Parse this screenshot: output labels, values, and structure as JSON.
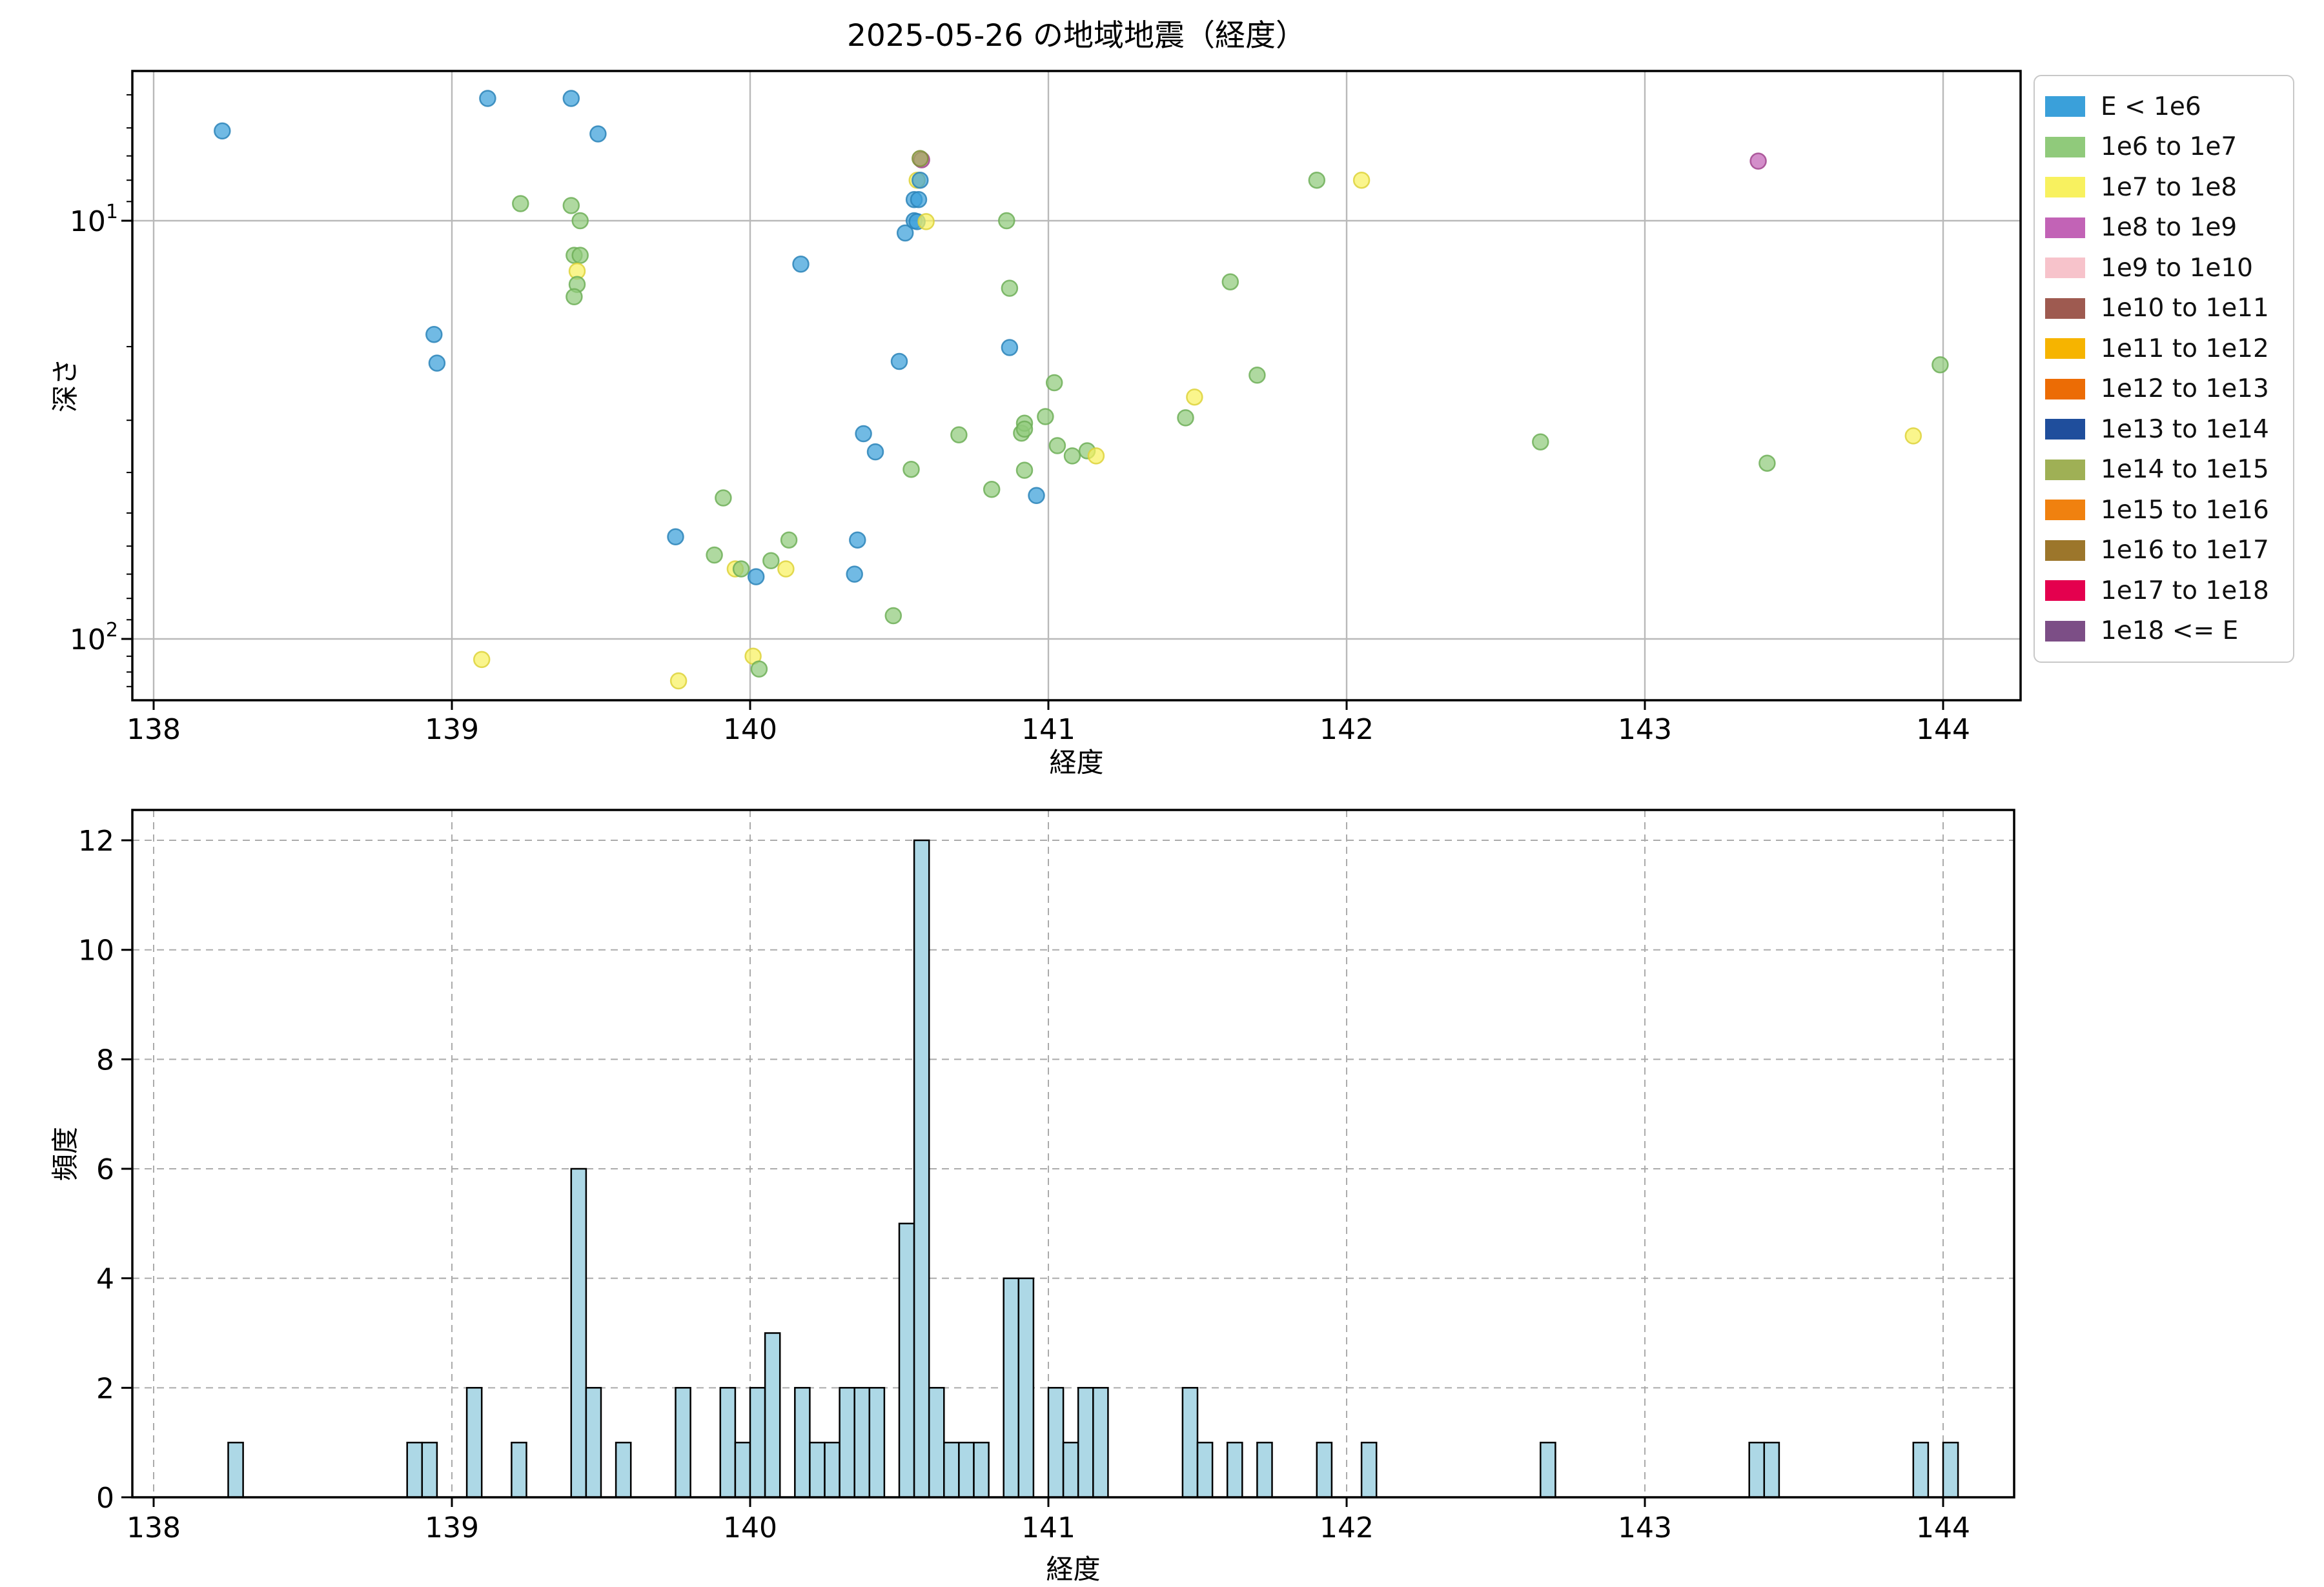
{
  "figure": {
    "background": "#ffffff"
  },
  "legend": {
    "entries": [
      {
        "label": "E < 1e6",
        "color": "#3AA0DA"
      },
      {
        "label": "1e6 to 1e7",
        "color": "#90CA7B"
      },
      {
        "label": "1e7 to 1e8",
        "color": "#F8F15F"
      },
      {
        "label": "1e8 to 1e9",
        "color": "#C263B6"
      },
      {
        "label": "1e9 to 1e10",
        "color": "#F7C3CB"
      },
      {
        "label": "1e10 to 1e11",
        "color": "#9E5A50"
      },
      {
        "label": "1e11 to 1e12",
        "color": "#F6B400"
      },
      {
        "label": "1e12 to 1e13",
        "color": "#EC6C05"
      },
      {
        "label": "1e13 to 1e14",
        "color": "#1F4E9C"
      },
      {
        "label": "1e14 to 1e15",
        "color": "#9FB055"
      },
      {
        "label": "1e15 to 1e16",
        "color": "#F0810F"
      },
      {
        "label": "1e16 to 1e17",
        "color": "#9C762B"
      },
      {
        "label": "1e17 to 1e18",
        "color": "#E4004E"
      },
      {
        "label": "1e18 <= E",
        "color": "#7C4E86"
      }
    ]
  },
  "classes": {
    "b": {
      "label": "E < 1e6",
      "fill": "#3AA0DA",
      "edge": "#2C84B8"
    },
    "g": {
      "label": "1e6 to 1e7",
      "fill": "#90CA7B",
      "edge": "#6FAF58"
    },
    "y": {
      "label": "1e7 to 1e8",
      "fill": "#F8F15F",
      "edge": "#DDD23B"
    },
    "p": {
      "label": "1e8 to 1e9",
      "fill": "#C263B6",
      "edge": "#A2478F"
    },
    "o": {
      "label": "1e14 to 1e15",
      "fill": "#9FB055",
      "edge": "#7F9038"
    }
  },
  "style": {
    "scatter_alpha": 0.72,
    "hist_fill": "#ADD8E6",
    "hist_edge": "#000000",
    "grid_top_color": "#b9b9b9",
    "grid_bottom_color": "#ababab",
    "spine_color": "#000000"
  },
  "chart_data": [
    {
      "type": "scatter",
      "title": "2025-05-26 の地域地震（経度）",
      "xlabel": "経度",
      "ylabel": "深さ",
      "x_range": [
        137.93,
        144.26
      ],
      "y_scale": "log",
      "y_inverted": true,
      "y_range": [
        4.4,
        140
      ],
      "xticks": [
        138,
        139,
        140,
        141,
        142,
        143,
        144
      ],
      "yticks": [
        10,
        100
      ],
      "y_minor_ticks": [
        5,
        6,
        7,
        8,
        9,
        20,
        30,
        40,
        50,
        60,
        70,
        80,
        90,
        110,
        120,
        130
      ],
      "grid": "solid",
      "legend_position": "outside-right",
      "points": [
        [
          138.23,
          6.1,
          "b"
        ],
        [
          138.94,
          18.7,
          "b"
        ],
        [
          138.95,
          21.9,
          "b"
        ],
        [
          139.1,
          112,
          "y"
        ],
        [
          139.12,
          5.1,
          "b"
        ],
        [
          139.23,
          9.1,
          "g"
        ],
        [
          139.4,
          5.1,
          "b"
        ],
        [
          139.4,
          9.2,
          "g"
        ],
        [
          139.43,
          10.0,
          "g"
        ],
        [
          139.41,
          12.1,
          "g"
        ],
        [
          139.43,
          12.1,
          "g"
        ],
        [
          139.42,
          13.2,
          "y"
        ],
        [
          139.42,
          14.2,
          "g"
        ],
        [
          139.41,
          15.2,
          "g"
        ],
        [
          139.49,
          6.2,
          "b"
        ],
        [
          139.75,
          57,
          "b"
        ],
        [
          139.76,
          126,
          "y"
        ],
        [
          139.88,
          63,
          "g"
        ],
        [
          139.91,
          46,
          "g"
        ],
        [
          139.95,
          68,
          "y"
        ],
        [
          139.97,
          68,
          "g"
        ],
        [
          140.01,
          110,
          "y"
        ],
        [
          140.02,
          71,
          "b"
        ],
        [
          140.03,
          118,
          "g"
        ],
        [
          140.07,
          65,
          "g"
        ],
        [
          140.12,
          68,
          "y"
        ],
        [
          140.13,
          58,
          "g"
        ],
        [
          140.17,
          12.7,
          "b"
        ],
        [
          140.35,
          70,
          "b"
        ],
        [
          140.36,
          58,
          "b"
        ],
        [
          140.38,
          32.3,
          "b"
        ],
        [
          140.42,
          35.7,
          "b"
        ],
        [
          140.48,
          88,
          "g"
        ],
        [
          140.5,
          21.7,
          "b"
        ],
        [
          140.52,
          10.7,
          "b"
        ],
        [
          140.54,
          39.3,
          "g"
        ],
        [
          140.575,
          7.15,
          "p"
        ],
        [
          140.57,
          7.1,
          "o"
        ],
        [
          140.56,
          8.0,
          "y"
        ],
        [
          140.57,
          8.0,
          "b"
        ],
        [
          140.55,
          8.9,
          "b"
        ],
        [
          140.565,
          8.9,
          "b"
        ],
        [
          140.55,
          10.0,
          "b"
        ],
        [
          140.56,
          10.05,
          "b"
        ],
        [
          140.59,
          10.05,
          "y"
        ],
        [
          140.7,
          32.5,
          "g"
        ],
        [
          140.81,
          43.9,
          "g"
        ],
        [
          140.86,
          10.0,
          "g"
        ],
        [
          140.87,
          14.5,
          "g"
        ],
        [
          140.87,
          20.1,
          "b"
        ],
        [
          140.91,
          32.2,
          "g"
        ],
        [
          140.92,
          30.5,
          "g"
        ],
        [
          140.92,
          31.5,
          "g"
        ],
        [
          140.92,
          39.5,
          "g"
        ],
        [
          140.96,
          45.4,
          "b"
        ],
        [
          140.99,
          29.4,
          "g"
        ],
        [
          141.02,
          24.4,
          "g"
        ],
        [
          141.03,
          34.5,
          "g"
        ],
        [
          141.08,
          36.5,
          "g"
        ],
        [
          141.13,
          35.5,
          "g"
        ],
        [
          141.16,
          36.5,
          "y"
        ],
        [
          141.46,
          29.6,
          "g"
        ],
        [
          141.49,
          26.4,
          "y"
        ],
        [
          141.61,
          14.0,
          "g"
        ],
        [
          141.7,
          23.4,
          "g"
        ],
        [
          141.9,
          8.0,
          "g"
        ],
        [
          142.05,
          8.0,
          "y"
        ],
        [
          142.65,
          33.8,
          "g"
        ],
        [
          143.38,
          7.2,
          "p"
        ],
        [
          143.41,
          38.0,
          "g"
        ],
        [
          143.9,
          32.7,
          "y"
        ],
        [
          143.99,
          22.1,
          "g"
        ]
      ]
    },
    {
      "type": "bar",
      "xlabel": "経度",
      "ylabel": "頻度",
      "bin_width": 0.05,
      "x_range": [
        137.93,
        144.26
      ],
      "y_range": [
        0,
        12.6
      ],
      "xticks": [
        138,
        139,
        140,
        141,
        142,
        143,
        144
      ],
      "yticks": [
        0,
        2,
        4,
        6,
        8,
        10,
        12
      ],
      "grid": "dashed",
      "bars": [
        [
          138.25,
          1
        ],
        [
          138.85,
          1
        ],
        [
          138.9,
          1
        ],
        [
          139.05,
          2
        ],
        [
          139.2,
          1
        ],
        [
          139.4,
          6
        ],
        [
          139.45,
          2
        ],
        [
          139.55,
          1
        ],
        [
          139.75,
          2
        ],
        [
          139.9,
          2
        ],
        [
          139.95,
          1
        ],
        [
          140.0,
          2
        ],
        [
          140.05,
          3
        ],
        [
          140.15,
          2
        ],
        [
          140.2,
          1
        ],
        [
          140.25,
          1
        ],
        [
          140.3,
          2
        ],
        [
          140.35,
          2
        ],
        [
          140.4,
          2
        ],
        [
          140.5,
          5
        ],
        [
          140.55,
          12
        ],
        [
          140.6,
          2
        ],
        [
          140.65,
          1
        ],
        [
          140.7,
          1
        ],
        [
          140.75,
          1
        ],
        [
          140.85,
          4
        ],
        [
          140.9,
          4
        ],
        [
          141.0,
          2
        ],
        [
          141.05,
          1
        ],
        [
          141.1,
          2
        ],
        [
          141.15,
          2
        ],
        [
          141.45,
          2
        ],
        [
          141.5,
          1
        ],
        [
          141.6,
          1
        ],
        [
          141.7,
          1
        ],
        [
          141.9,
          1
        ],
        [
          142.05,
          1
        ],
        [
          142.65,
          1
        ],
        [
          143.35,
          1
        ],
        [
          143.4,
          1
        ],
        [
          143.9,
          1
        ],
        [
          144.0,
          1
        ]
      ]
    }
  ]
}
